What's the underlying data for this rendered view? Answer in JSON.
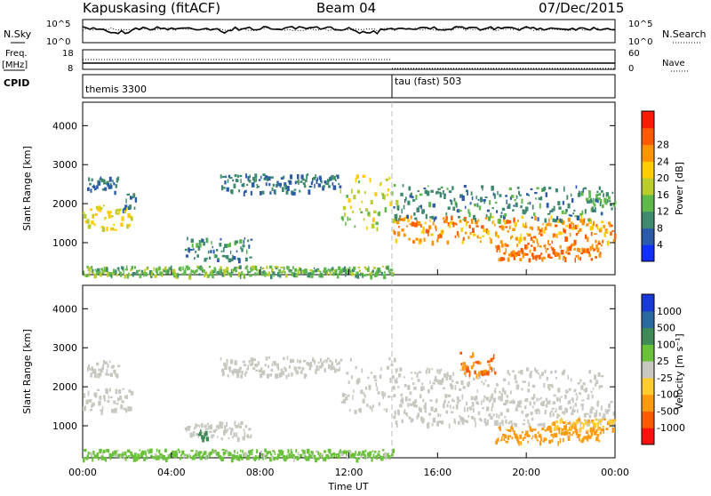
{
  "header": {
    "station": "Kapuskasing (fitACF)",
    "beam": "Beam 04",
    "date": "07/Dec/2015"
  },
  "noise_panel": {
    "left_label": "N.Sky",
    "right_label": "N.Search",
    "left_ticks": [
      "10^5",
      "10^0"
    ],
    "right_ticks": [
      "10^5",
      "10^0"
    ]
  },
  "freq_panel": {
    "left_label_1": "Freq.",
    "left_label_2": "[MHz]",
    "right_label": "Nave",
    "left_ticks": [
      "18",
      "8"
    ],
    "right_ticks": [
      "60",
      "0"
    ]
  },
  "cpid_panel": {
    "label": "CPID",
    "modes": [
      {
        "name": "themis 3300",
        "start_hour": 0
      },
      {
        "name": "tau (fast) 503",
        "start_hour": 14.0
      }
    ]
  },
  "chart_data": [
    {
      "type": "heatmap",
      "title": "Power",
      "xlabel": "",
      "ylabel": "Slant Range [km]",
      "colorbar_label": "Power [dB]",
      "colorbar_ticks": [
        "4",
        "8",
        "12",
        "16",
        "20",
        "24",
        "28"
      ],
      "colorbar_colors": [
        "#1030ff",
        "#2a5aa8",
        "#3f8a6e",
        "#5fb84a",
        "#b9cc2c",
        "#ffcc00",
        "#ff9400",
        "#ff5a00",
        "#ff1a00"
      ],
      "x_range_hours": [
        0,
        24
      ],
      "y_range_km": [
        180,
        4600
      ],
      "y_ticks": [
        "1000",
        "2000",
        "3000",
        "4000"
      ],
      "regions": [
        {
          "x0": 0.0,
          "x1": 2.2,
          "y0": 1350,
          "y1": 2000,
          "level": 20
        },
        {
          "x0": 0.2,
          "x1": 1.6,
          "y0": 2300,
          "y1": 2700,
          "level": 8
        },
        {
          "x0": 1.8,
          "x1": 2.4,
          "y0": 1850,
          "y1": 2300,
          "level": 8
        },
        {
          "x0": 4.6,
          "x1": 7.6,
          "y0": 600,
          "y1": 1150,
          "level": 10
        },
        {
          "x0": 6.2,
          "x1": 10.2,
          "y0": 2300,
          "y1": 2800,
          "level": 8
        },
        {
          "x0": 10.2,
          "x1": 11.6,
          "y0": 2450,
          "y1": 2750,
          "level": 8
        },
        {
          "x0": 11.6,
          "x1": 14.2,
          "y0": 1400,
          "y1": 2800,
          "level": 18
        },
        {
          "x0": 14.0,
          "x1": 24.0,
          "y0": 1050,
          "y1": 1700,
          "level": 26
        },
        {
          "x0": 14.0,
          "x1": 23.4,
          "y0": 1600,
          "y1": 2500,
          "level": 10
        },
        {
          "x0": 18.6,
          "x1": 23.4,
          "y0": 600,
          "y1": 1000,
          "level": 28
        },
        {
          "x0": 22.8,
          "x1": 24.0,
          "y0": 1900,
          "y1": 2350,
          "level": 12
        },
        {
          "x0": 0.0,
          "x1": 14.0,
          "y0": 180,
          "y1": 420,
          "level": 14
        }
      ]
    },
    {
      "type": "heatmap",
      "title": "Velocity",
      "xlabel": "Time UT",
      "ylabel": "Slant Range [km]",
      "colorbar_label": "Velocity [m s⁻¹]",
      "colorbar_ticks": [
        "1000",
        "500",
        "100",
        "25",
        "-25",
        "-100",
        "-500",
        "-1000"
      ],
      "colorbar_colors": [
        "#1a3ad8",
        "#2a6aa0",
        "#3f8a56",
        "#6ac23a",
        "#c8c8c0",
        "#ffcc30",
        "#ff9a10",
        "#ff5a00",
        "#ff1010"
      ],
      "x_range_hours": [
        0,
        24
      ],
      "x_ticks": [
        "00:00",
        "04:00",
        "08:00",
        "12:00",
        "16:00",
        "20:00",
        "00:00"
      ],
      "y_range_km": [
        180,
        4600
      ],
      "y_ticks": [
        "1000",
        "2000",
        "3000",
        "4000"
      ],
      "regions": [
        {
          "x0": 0.0,
          "x1": 2.2,
          "y0": 1350,
          "y1": 2000,
          "level": 0
        },
        {
          "x0": 0.2,
          "x1": 1.6,
          "y0": 2300,
          "y1": 2700,
          "level": 0
        },
        {
          "x0": 4.6,
          "x1": 7.6,
          "y0": 700,
          "y1": 1150,
          "level": 0
        },
        {
          "x0": 5.2,
          "x1": 5.6,
          "y0": 700,
          "y1": 900,
          "level": 120
        },
        {
          "x0": 6.2,
          "x1": 10.2,
          "y0": 2300,
          "y1": 2800,
          "level": 0
        },
        {
          "x0": 10.2,
          "x1": 11.6,
          "y0": 2450,
          "y1": 2750,
          "level": 0
        },
        {
          "x0": 11.6,
          "x1": 14.2,
          "y0": 1400,
          "y1": 2800,
          "level": 0
        },
        {
          "x0": 14.0,
          "x1": 24.0,
          "y0": 1050,
          "y1": 1700,
          "level": 0
        },
        {
          "x0": 14.0,
          "x1": 23.4,
          "y0": 1600,
          "y1": 2500,
          "level": 0
        },
        {
          "x0": 18.6,
          "x1": 23.4,
          "y0": 600,
          "y1": 1000,
          "level": -400
        },
        {
          "x0": 21.0,
          "x1": 24.0,
          "y0": 900,
          "y1": 1200,
          "level": -100
        },
        {
          "x0": 17.0,
          "x1": 18.6,
          "y0": 2300,
          "y1": 2900,
          "level": -500
        },
        {
          "x0": 0.0,
          "x1": 14.0,
          "y0": 180,
          "y1": 420,
          "level": 40
        }
      ]
    }
  ]
}
